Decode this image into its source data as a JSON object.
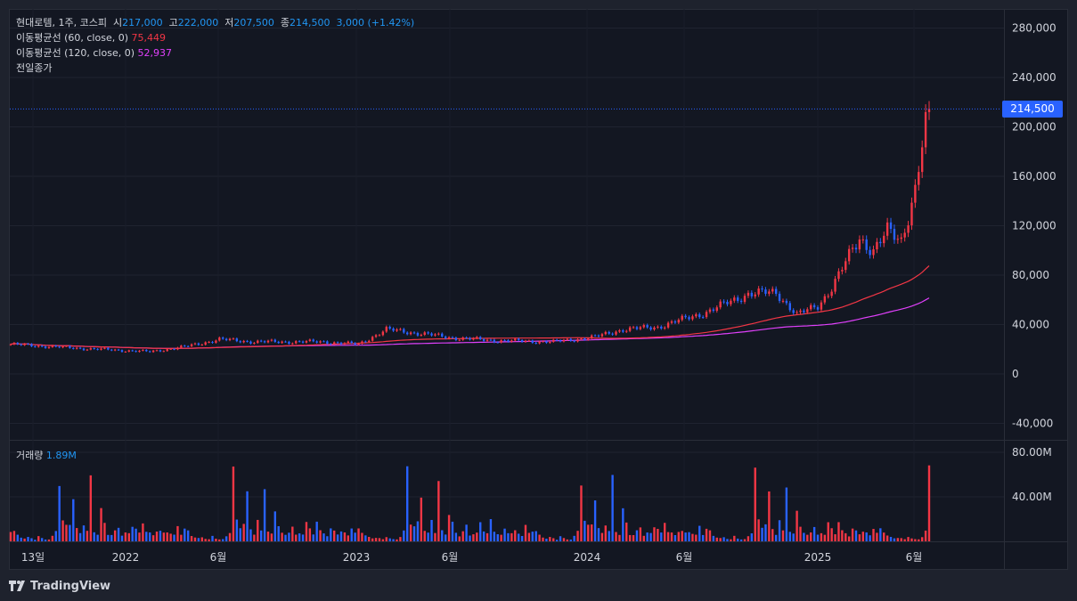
{
  "legend": {
    "symbol": "현대로템, 1주, 코스피",
    "open_label": "시",
    "open": "217,000",
    "high_label": "고",
    "high": "222,000",
    "low_label": "저",
    "low": "207,500",
    "close_label": "종",
    "close": "214,500",
    "change": "3,000 (+1.42%)",
    "ma60_label": "이동평균선 (60, close, 0)",
    "ma60_value": "75,449",
    "ma120_label": "이동평균선 (120, close, 0)",
    "ma120_value": "52,937",
    "prev_close_label": "전일종가",
    "volume_label": "거래량",
    "volume_value": "1.89M"
  },
  "price_tag": "214,500",
  "branding": "TradingView",
  "colors": {
    "up": "#f23645",
    "down": "#2962ff",
    "ma60": "#f23645",
    "ma120": "#e040fb",
    "price_line": "#2962ff"
  },
  "chart_data": {
    "type": "candlestick",
    "price_axis": [
      "280,000",
      "240,000",
      "200,000",
      "160,000",
      "120,000",
      "80,000",
      "40,000",
      "0",
      "-40,000"
    ],
    "price_ticks": [
      280000,
      240000,
      200000,
      160000,
      120000,
      80000,
      40000,
      0,
      -40000
    ],
    "volume_axis": [
      "80.00M",
      "40.00M"
    ],
    "volume_ticks": [
      80,
      40
    ],
    "time_labels": [
      "13일",
      "2022",
      "6월",
      "2023",
      "6월",
      "2024",
      "6월",
      "2025",
      "6월"
    ],
    "last_price": 214500,
    "anchors": [
      [
        0,
        24000
      ],
      [
        12,
        22000
      ],
      [
        25,
        20000
      ],
      [
        40,
        18000
      ],
      [
        50,
        22000
      ],
      [
        60,
        28000
      ],
      [
        70,
        26000
      ],
      [
        90,
        26000
      ],
      [
        100,
        24000
      ],
      [
        108,
        36000
      ],
      [
        114,
        34000
      ],
      [
        128,
        29000
      ],
      [
        140,
        27000
      ],
      [
        156,
        26000
      ],
      [
        168,
        30000
      ],
      [
        176,
        36000
      ],
      [
        186,
        38000
      ],
      [
        200,
        50000
      ],
      [
        212,
        65000
      ],
      [
        220,
        66000
      ],
      [
        226,
        48000
      ],
      [
        232,
        55000
      ],
      [
        236,
        70000
      ],
      [
        240,
        90000
      ],
      [
        244,
        110000
      ],
      [
        248,
        100000
      ],
      [
        252,
        115000
      ],
      [
        256,
        108000
      ],
      [
        260,
        150000
      ],
      [
        262,
        185000
      ],
      [
        264,
        214500
      ]
    ],
    "volume_pattern_m": [
      12,
      10,
      6,
      4,
      3,
      4,
      3,
      2,
      5,
      3,
      2,
      2,
      5,
      10,
      70,
      20,
      15,
      18,
      45,
      12,
      8,
      20,
      10,
      60,
      10,
      7,
      30,
      18,
      8,
      6,
      10,
      15,
      6,
      8,
      8,
      18,
      12,
      8,
      20,
      10,
      8,
      6,
      12,
      10,
      8,
      10,
      8,
      6,
      15,
      8
    ]
  }
}
